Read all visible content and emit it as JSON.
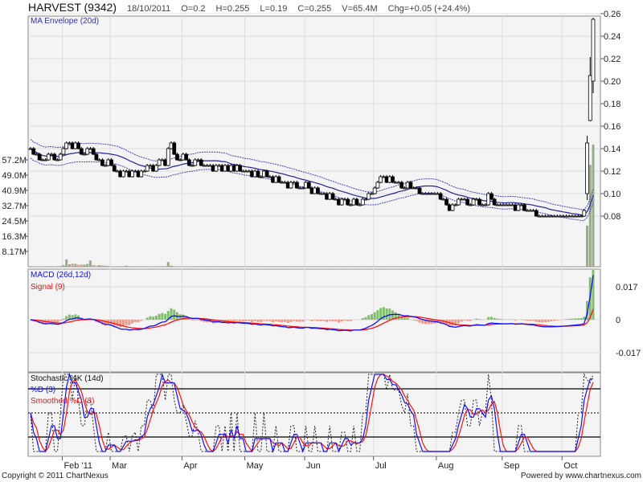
{
  "header": {
    "title": "HARVEST (9342)",
    "date": "18/10/2011",
    "open": "O=0.2",
    "high": "H=0.255",
    "low": "L=0.19",
    "close": "C=0.255",
    "volume": "V=65.4M",
    "change": "Chg=+0.05 (+24.4%)"
  },
  "footer": {
    "copyright": "Copyright © 2011 ChartNexus",
    "powered": "Powered by www.chartnexus.com"
  },
  "colors": {
    "up_volume": "#9aab8a",
    "down_volume": "#dba391",
    "ma": "#22229a",
    "macd": "#1010ff",
    "signal": "#ff1010",
    "hist_pos": "#7fbf6a",
    "hist_neg": "#e89a88",
    "panel_bg": "#f4f4f4",
    "grid": "#dddddd"
  },
  "chart_data": {
    "type": "candlestick",
    "panels": [
      {
        "name": "price",
        "legend": "MA Envelope (20d)",
        "ylim": [
          0.06,
          0.26
        ],
        "yticks": [
          "0.08",
          "0.10",
          "0.12",
          "0.14",
          "0.16",
          "0.18",
          "0.20",
          "0.22",
          "0.24",
          "0.26"
        ],
        "envelope_pct": 6,
        "volume_ticks": [
          "8.17M",
          "16.3M",
          "24.5M",
          "32.7M",
          "40.9M",
          "49.0M",
          "57.2M"
        ]
      },
      {
        "name": "macd",
        "legend_macd": "MACD (26d,12d)",
        "legend_signal": "Signal (9)",
        "ylim": [
          -0.027,
          0.027
        ],
        "yticks": [
          "0.017",
          "0",
          "-0.017"
        ]
      },
      {
        "name": "stochastic",
        "legend_k": "Stochastic %K (14d)",
        "legend_d": "%D (3)",
        "legend_sd": "Smoothed %D (3)",
        "ylim": [
          0,
          100
        ],
        "levels": [
          20,
          50,
          80
        ]
      }
    ],
    "x_month_labels": [
      "Feb '11",
      "Mar",
      "Apr",
      "May",
      "Jun",
      "Jul",
      "Aug",
      "Sep",
      "Oct"
    ],
    "month_start_index": [
      11,
      27,
      51,
      72,
      92,
      115,
      136,
      158,
      178
    ],
    "close": [
      0.14,
      0.135,
      0.135,
      0.13,
      0.13,
      0.13,
      0.135,
      0.135,
      0.13,
      0.13,
      0.135,
      0.14,
      0.145,
      0.145,
      0.14,
      0.145,
      0.14,
      0.135,
      0.135,
      0.14,
      0.14,
      0.135,
      0.13,
      0.13,
      0.125,
      0.125,
      0.13,
      0.125,
      0.12,
      0.12,
      0.115,
      0.12,
      0.12,
      0.115,
      0.12,
      0.12,
      0.115,
      0.12,
      0.12,
      0.125,
      0.125,
      0.12,
      0.125,
      0.13,
      0.13,
      0.125,
      0.14,
      0.145,
      0.135,
      0.13,
      0.13,
      0.135,
      0.13,
      0.125,
      0.125,
      0.13,
      0.13,
      0.125,
      0.125,
      0.125,
      0.125,
      0.12,
      0.125,
      0.125,
      0.12,
      0.125,
      0.12,
      0.125,
      0.12,
      0.125,
      0.12,
      0.12,
      0.12,
      0.12,
      0.115,
      0.12,
      0.115,
      0.115,
      0.12,
      0.115,
      0.115,
      0.11,
      0.115,
      0.11,
      0.11,
      0.11,
      0.105,
      0.11,
      0.11,
      0.105,
      0.105,
      0.105,
      0.11,
      0.105,
      0.1,
      0.105,
      0.1,
      0.1,
      0.1,
      0.095,
      0.1,
      0.095,
      0.095,
      0.09,
      0.095,
      0.095,
      0.09,
      0.09,
      0.095,
      0.09,
      0.09,
      0.095,
      0.095,
      0.1,
      0.1,
      0.105,
      0.11,
      0.115,
      0.115,
      0.11,
      0.115,
      0.11,
      0.11,
      0.11,
      0.105,
      0.105,
      0.11,
      0.105,
      0.105,
      0.105,
      0.1,
      0.1,
      0.1,
      0.1,
      0.1,
      0.1,
      0.1,
      0.095,
      0.095,
      0.09,
      0.085,
      0.09,
      0.09,
      0.095,
      0.095,
      0.095,
      0.09,
      0.09,
      0.095,
      0.095,
      0.09,
      0.09,
      0.09,
      0.1,
      0.095,
      0.09,
      0.09,
      0.09,
      0.09,
      0.09,
      0.09,
      0.09,
      0.085,
      0.09,
      0.09,
      0.085,
      0.085,
      0.085,
      0.085,
      0.08,
      0.08,
      0.08,
      0.08,
      0.08,
      0.08,
      0.08,
      0.08,
      0.08,
      0.08,
      0.08,
      0.08,
      0.08,
      0.08,
      0.08,
      0.08,
      0.085,
      0.145,
      0.205,
      0.255
    ],
    "last_ohlc": [
      {
        "o": 0.1,
        "h": 0.15,
        "l": 0.095,
        "c": 0.145
      },
      {
        "o": 0.165,
        "h": 0.22,
        "l": 0.165,
        "c": 0.205
      },
      {
        "o": 0.2,
        "h": 0.255,
        "l": 0.19,
        "c": 0.255
      }
    ],
    "volume_m": [
      0.3,
      0.2,
      0.2,
      0.3,
      0.2,
      0.2,
      0.2,
      0.3,
      0.2,
      0.2,
      0.4,
      0.9,
      3.9,
      1.3,
      1.7,
      1.5,
      1.0,
      1.2,
      1.1,
      1.5,
      3.3,
      1.0,
      0.6,
      0.8,
      0.8,
      0.5,
      0.4,
      0.2,
      0.2,
      0.1,
      0.1,
      0.1,
      0.6,
      0.1,
      0.1,
      0.1,
      0.1,
      0.2,
      0.1,
      0.2,
      0.1,
      0.2,
      0.2,
      0.2,
      0.3,
      0.3,
      2.5,
      0.6,
      0.3,
      0.2,
      0.2,
      0.2,
      0.2,
      0.2,
      0.1,
      0.1,
      0.1,
      0.1,
      0.1,
      0.1,
      0.1,
      0.1,
      0.1,
      0.1,
      0.1,
      0.1,
      0.1,
      0.1,
      0.1,
      0.1,
      0.1,
      0.1,
      0.1,
      0.1,
      0.1,
      0.1,
      0.1,
      0.1,
      0.1,
      0.1,
      0.1,
      0.1,
      0.1,
      0.1,
      0.1,
      0.1,
      0.1,
      0.1,
      0.1,
      0.1,
      0.1,
      0.1,
      0.1,
      0.1,
      0.1,
      0.1,
      0.1,
      0.1,
      0.1,
      0.1,
      0.1,
      0.1,
      0.1,
      0.1,
      0.1,
      0.1,
      0.1,
      0.1,
      0.1,
      0.1,
      0.1,
      0.1,
      0.1,
      0.1,
      0.1,
      0.1,
      0.1,
      0.1,
      0.1,
      0.1,
      0.1,
      0.1,
      0.1,
      0.1,
      0.1,
      0.1,
      0.1,
      0.1,
      0.1,
      0.1,
      0.1,
      0.1,
      0.1,
      0.1,
      0.1,
      0.1,
      0.1,
      0.1,
      0.1,
      0.1,
      0.1,
      0.1,
      0.1,
      0.1,
      0.1,
      0.1,
      0.1,
      0.1,
      0.1,
      0.1,
      0.1,
      0.1,
      0.1,
      0.1,
      0.1,
      0.1,
      0.1,
      0.1,
      0.1,
      0.1,
      0.1,
      0.1,
      0.1,
      0.1,
      0.1,
      0.1,
      0.1,
      0.1,
      0.1,
      0.1,
      0.1,
      0.1,
      0.1,
      0.1,
      0.1,
      0.1,
      0.1,
      0.1,
      0.1,
      0.1,
      0.1,
      0.1,
      0.1,
      0.1,
      0.1,
      0.1,
      22.0,
      54.5,
      65.4
    ]
  }
}
